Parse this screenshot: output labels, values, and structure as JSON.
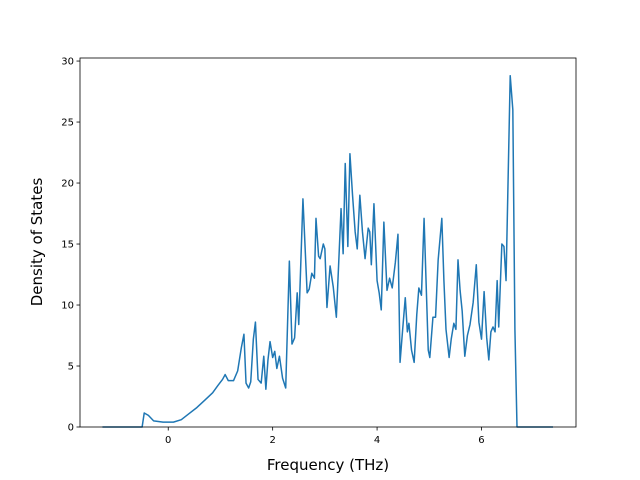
{
  "chart_data": {
    "type": "line",
    "xlabel": "Frequency (THz)",
    "ylabel": "Density of States",
    "color": "#1f77b4",
    "x": [
      -1.26,
      -0.5,
      -0.46,
      -0.38,
      -0.28,
      -0.1,
      0.1,
      0.25,
      0.4,
      0.55,
      0.7,
      0.85,
      0.95,
      1.04,
      1.09,
      1.15,
      1.25,
      1.33,
      1.4,
      1.45,
      1.49,
      1.54,
      1.58,
      1.63,
      1.67,
      1.72,
      1.78,
      1.83,
      1.87,
      1.91,
      1.95,
      2.0,
      2.04,
      2.08,
      2.13,
      2.19,
      2.25,
      2.32,
      2.37,
      2.42,
      2.47,
      2.5,
      2.58,
      2.66,
      2.7,
      2.75,
      2.8,
      2.83,
      2.88,
      2.91,
      2.97,
      3.0,
      3.04,
      3.1,
      3.16,
      3.22,
      3.31,
      3.35,
      3.39,
      3.44,
      3.48,
      3.53,
      3.58,
      3.62,
      3.67,
      3.72,
      3.77,
      3.83,
      3.86,
      3.89,
      3.94,
      4.0,
      4.04,
      4.08,
      4.13,
      4.19,
      4.24,
      4.29,
      4.35,
      4.4,
      4.44,
      4.49,
      4.54,
      4.58,
      4.61,
      4.66,
      4.71,
      4.76,
      4.8,
      4.85,
      4.9,
      4.98,
      5.01,
      5.07,
      5.12,
      5.17,
      5.24,
      5.28,
      5.32,
      5.38,
      5.42,
      5.47,
      5.51,
      5.55,
      5.59,
      5.63,
      5.68,
      5.73,
      5.78,
      5.84,
      5.9,
      5.95,
      6.0,
      6.05,
      6.1,
      6.14,
      6.18,
      6.22,
      6.26,
      6.3,
      6.33,
      6.39,
      6.43,
      6.47,
      6.55,
      6.6,
      6.64,
      6.68,
      7.37
    ],
    "series": [
      {
        "values": [
          0,
          0,
          1.15,
          0.95,
          0.5,
          0.4,
          0.4,
          0.6,
          1.1,
          1.6,
          2.2,
          2.8,
          3.4,
          3.9,
          4.3,
          3.8,
          3.8,
          4.6,
          6.5,
          7.6,
          3.6,
          3.2,
          3.7,
          7.2,
          8.6,
          3.9,
          3.6,
          5.8,
          3.1,
          5.5,
          7.0,
          5.7,
          6.2,
          4.8,
          5.8,
          4.0,
          3.2,
          13.6,
          6.8,
          7.3,
          11.0,
          8.4,
          18.7,
          11.0,
          11.3,
          12.6,
          12.2,
          17.1,
          14.0,
          13.8,
          15.0,
          14.6,
          9.8,
          13.2,
          11.5,
          9.0,
          17.9,
          14.2,
          21.6,
          14.8,
          22.4,
          19.0,
          16.0,
          14.6,
          19.0,
          16.0,
          13.8,
          16.3,
          16.0,
          13.3,
          18.3,
          12.0,
          11.0,
          9.6,
          16.8,
          11.2,
          12.2,
          11.4,
          13.5,
          15.8,
          5.3,
          8.0,
          10.6,
          7.8,
          8.5,
          6.3,
          5.3,
          9.2,
          11.4,
          10.8,
          17.1,
          6.3,
          5.7,
          9.0,
          9.0,
          13.7,
          17.1,
          12.0,
          8.0,
          5.7,
          7.2,
          8.5,
          8.0,
          13.7,
          11.2,
          9.5,
          5.8,
          7.5,
          8.4,
          10.2,
          13.3,
          8.6,
          7.2,
          11.1,
          7.3,
          5.5,
          7.8,
          8.2,
          7.8,
          12.0,
          8.2,
          15.0,
          14.8,
          12.0,
          28.8,
          26.0,
          8.0,
          0,
          0
        ]
      }
    ],
    "xlim": [
      -1.69,
      7.81
    ],
    "ylim": [
      0,
      30.25
    ],
    "xticks": [
      0,
      2,
      4,
      6
    ],
    "yticks": [
      0,
      5,
      10,
      15,
      20,
      25,
      30
    ]
  }
}
